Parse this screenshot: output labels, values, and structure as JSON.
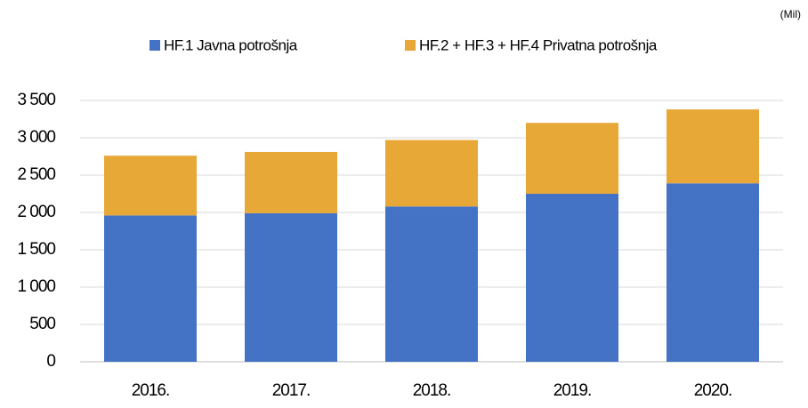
{
  "chart_data": {
    "type": "stacked_bar",
    "unit": "(Mil)",
    "categories": [
      "2016.",
      "2017.",
      "2018.",
      "2019.",
      "2020."
    ],
    "series": [
      {
        "name": "HF.1 Javna potrošnja",
        "color": "#4472c4",
        "values": [
          1960,
          1990,
          2080,
          2250,
          2390
        ]
      },
      {
        "name": "HF.2 + HF.3 + HF.4 Privatna potrošnja",
        "color": "#e8a838",
        "values": [
          800,
          820,
          890,
          950,
          990
        ]
      }
    ],
    "ylim": [
      0,
      3500
    ],
    "yticks": [
      0,
      500,
      {
        "value": 1000,
        "label": "1 000"
      },
      {
        "value": 1500,
        "label": "1 500"
      },
      {
        "value": 2000,
        "label": "2 000"
      },
      {
        "value": 2500,
        "label": "2 500"
      },
      {
        "value": 3000,
        "label": "3 000"
      },
      {
        "value": 3500,
        "label": "3 500"
      }
    ],
    "grid": true
  }
}
